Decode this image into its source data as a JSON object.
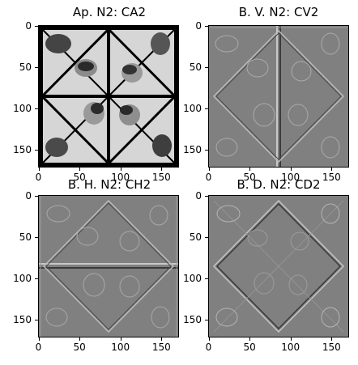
{
  "figure": {
    "panels": [
      {
        "title": "Ap. N2: CA2",
        "kind": "approx",
        "x_ticks": [
          "0",
          "50",
          "100",
          "150"
        ],
        "y_ticks": [
          "0",
          "50",
          "100",
          "150"
        ]
      },
      {
        "title": "B. V. N2: CV2",
        "kind": "vertical",
        "x_ticks": [
          "0",
          "50",
          "100",
          "150"
        ],
        "y_ticks": [
          "0",
          "50",
          "100",
          "150"
        ]
      },
      {
        "title": "B. H. N2: CH2",
        "kind": "horizontal",
        "x_ticks": [
          "0",
          "50",
          "100",
          "150"
        ],
        "y_ticks": [
          "0",
          "50",
          "100",
          "150"
        ]
      },
      {
        "title": "B. D. N2: CD2",
        "kind": "diagonal",
        "x_ticks": [
          "0",
          "50",
          "100",
          "150"
        ],
        "y_ticks": [
          "0",
          "50",
          "100",
          "150"
        ]
      }
    ],
    "colors": {
      "approx_bg": "#d8d8d8",
      "approx_frame": "#000000",
      "detail_bg": "#7f7f7f",
      "detail_light": "#bdbdbd",
      "detail_dark": "#3a3a3a"
    }
  }
}
